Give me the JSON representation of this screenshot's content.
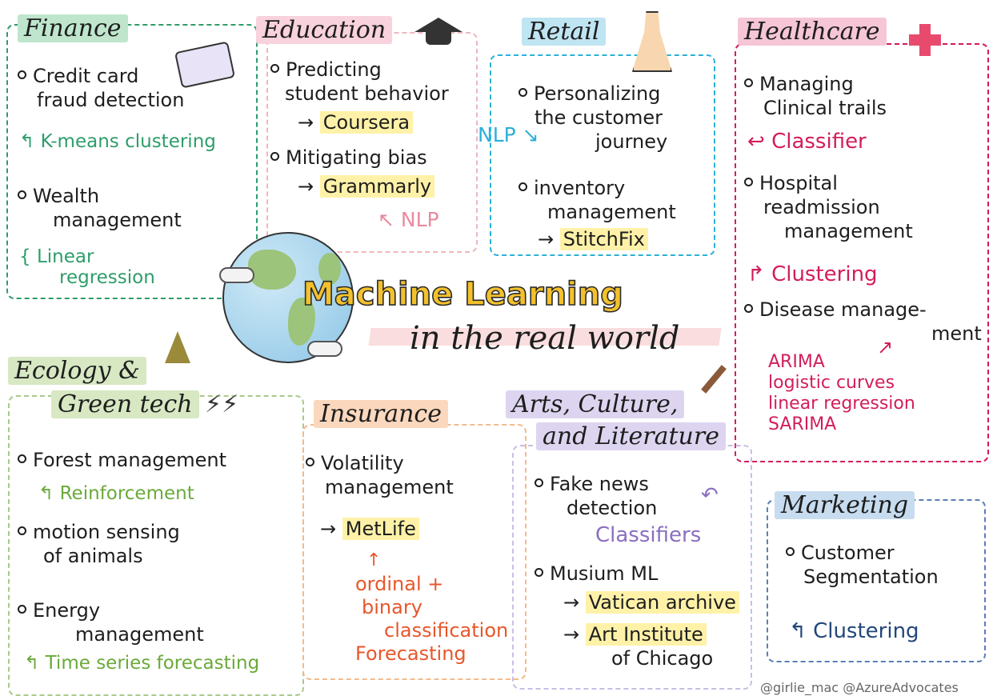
{
  "center": {
    "title": "Machine Learning",
    "subtitle": "in the real world"
  },
  "finance": {
    "title": "Finance",
    "item1": [
      "Credit card",
      "fraud detection"
    ],
    "note1": "K-means clustering",
    "item2": [
      "Wealth",
      "management"
    ],
    "note2": [
      "Linear",
      "regression"
    ]
  },
  "education": {
    "title": "Education",
    "item1": [
      "Predicting",
      "student behavior"
    ],
    "link1": "Coursera",
    "item2": "Mitigating bias",
    "link2": "Grammarly",
    "note": "NLP"
  },
  "retail": {
    "title": "Retail",
    "side_note": "NLP",
    "item1": [
      "Personalizing",
      "the customer",
      "journey"
    ],
    "item2": [
      "inventory",
      "management"
    ],
    "link": "StitchFix"
  },
  "healthcare": {
    "title": "Healthcare",
    "item1": [
      "Managing",
      "Clinical trails"
    ],
    "note1": "Classifier",
    "item2": [
      "Hospital",
      "readmission",
      "management"
    ],
    "note2": "Clustering",
    "item3": [
      "Disease manage-",
      "ment"
    ],
    "note3": [
      "ARIMA",
      "logistic curves",
      "linear regression",
      "SARIMA"
    ]
  },
  "ecology": {
    "title": [
      "Ecology &",
      "Green tech"
    ],
    "item1": "Forest management",
    "note1": "Reinforcement",
    "item2": [
      "motion sensing",
      "of animals"
    ],
    "item3": [
      "Energy",
      "management"
    ],
    "note3": "Time series forecasting"
  },
  "insurance": {
    "title": "Insurance",
    "item1": [
      "Volatility",
      "management"
    ],
    "link": "MetLife",
    "note": [
      "ordinal +",
      "binary",
      "classification",
      "Forecasting"
    ]
  },
  "arts": {
    "title": [
      "Arts, Culture,",
      "and Literature"
    ],
    "item1": [
      "Fake news",
      "detection"
    ],
    "note1": "Classifiers",
    "item2": "Musium ML",
    "link1": "Vatican archive",
    "link2": [
      "Art Institute",
      "of Chicago"
    ]
  },
  "marketing": {
    "title": "Marketing",
    "item1": [
      "Customer",
      "Segmentation"
    ],
    "note1": "Clustering"
  },
  "credit": "@girlie_mac @AzureAdvocates",
  "colors": {
    "finance": "#2e9d6b",
    "education": "#e88aa0",
    "retail": "#2bb0d8",
    "healthcare": "#d21e5a",
    "ecology": "#6aaa3a",
    "insurance": "#e8562b",
    "arts": "#8a6fc0",
    "marketing": "#23477a",
    "title_yellow": "#f3c12c"
  }
}
